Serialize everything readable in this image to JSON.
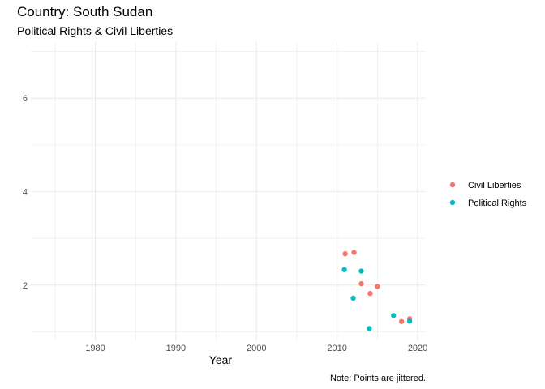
{
  "title": "Country: South Sudan",
  "subtitle": "Political Rights & Civil Liberties",
  "caption": "Note: Points are jittered.",
  "chart_data": {
    "type": "scatter",
    "xlabel": "Year",
    "ylabel": "",
    "xlim": [
      1972,
      2021
    ],
    "ylim": [
      0.8,
      7.2
    ],
    "x_ticks": [
      1980,
      1990,
      2000,
      2010,
      2020
    ],
    "y_ticks": [
      2,
      4,
      6
    ],
    "grid": true,
    "legend_position": "right",
    "series": [
      {
        "name": "Civil Liberties",
        "color": "#F8766D",
        "points": [
          {
            "x": 2011.0,
            "y": 2.67
          },
          {
            "x": 2012.1,
            "y": 2.7
          },
          {
            "x": 2013.0,
            "y": 2.03
          },
          {
            "x": 2014.1,
            "y": 1.82
          },
          {
            "x": 2015.0,
            "y": 1.97
          },
          {
            "x": 2018.0,
            "y": 1.22
          },
          {
            "x": 2019.0,
            "y": 1.28
          }
        ]
      },
      {
        "name": "Political Rights",
        "color": "#00BFC4",
        "points": [
          {
            "x": 2010.9,
            "y": 2.33
          },
          {
            "x": 2012.0,
            "y": 1.72
          },
          {
            "x": 2013.0,
            "y": 2.3
          },
          {
            "x": 2014.0,
            "y": 1.07
          },
          {
            "x": 2017.0,
            "y": 1.35
          },
          {
            "x": 2019.0,
            "y": 1.23
          }
        ]
      }
    ]
  }
}
